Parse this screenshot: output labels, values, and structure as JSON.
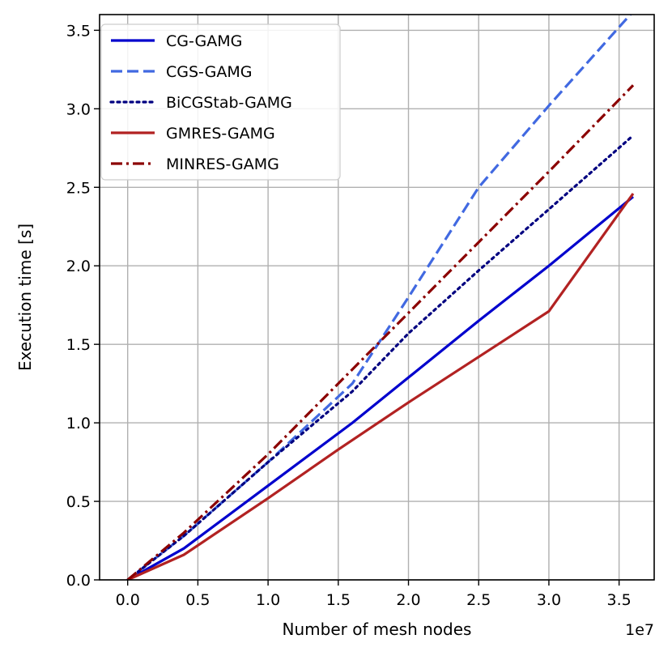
{
  "chart_data": {
    "type": "line",
    "title": "",
    "xlabel": "Number of mesh nodes",
    "ylabel": "Execution time [s]",
    "x_offset_label": "1e7",
    "xlim": [
      -0.2,
      3.75
    ],
    "ylim": [
      0.0,
      3.6
    ],
    "xticks": [
      0.0,
      0.5,
      1.0,
      1.5,
      2.0,
      2.5,
      3.0,
      3.5
    ],
    "xtick_labels": [
      "0.0",
      "0.5",
      "1.0",
      "1.5",
      "2.0",
      "2.5",
      "3.0",
      "3.5"
    ],
    "yticks": [
      0.0,
      0.5,
      1.0,
      1.5,
      2.0,
      2.5,
      3.0,
      3.5
    ],
    "ytick_labels": [
      "0.0",
      "0.5",
      "1.0",
      "1.5",
      "2.0",
      "2.5",
      "3.0",
      "3.5"
    ],
    "grid": true,
    "legend_position": "top-left",
    "series": [
      {
        "name": "CG-GAMG",
        "color": "#0000cd",
        "dash": "solid",
        "x": [
          0.0,
          0.4,
          1.0,
          1.6,
          2.5,
          3.0,
          3.6
        ],
        "y": [
          0.0,
          0.2,
          0.6,
          1.0,
          1.65,
          2.0,
          2.44
        ]
      },
      {
        "name": "CGS-GAMG",
        "color": "#4169e1",
        "dash": "dashed",
        "x": [
          0.0,
          0.4,
          1.0,
          1.6,
          2.0,
          2.5,
          3.0,
          3.6
        ],
        "y": [
          0.0,
          0.28,
          0.75,
          1.25,
          1.8,
          2.5,
          3.02,
          3.62
        ]
      },
      {
        "name": "BiCGStab-GAMG",
        "color": "#000080",
        "dash": "dotted",
        "x": [
          0.0,
          0.4,
          1.0,
          1.6,
          2.0,
          2.5,
          3.0,
          3.6
        ],
        "y": [
          0.0,
          0.28,
          0.75,
          1.2,
          1.57,
          1.97,
          2.36,
          2.83
        ]
      },
      {
        "name": "GMRES-GAMG",
        "color": "#b22222",
        "dash": "solid",
        "x": [
          0.0,
          0.4,
          1.0,
          1.5,
          2.0,
          2.5,
          3.0,
          3.6
        ],
        "y": [
          0.0,
          0.16,
          0.52,
          0.83,
          1.13,
          1.42,
          1.71,
          2.46
        ]
      },
      {
        "name": "MINRES-GAMG",
        "color": "#8b0000",
        "dash": "dashdot",
        "x": [
          0.0,
          0.4,
          1.0,
          1.5,
          2.0,
          2.5,
          3.0,
          3.6
        ],
        "y": [
          0.0,
          0.3,
          0.8,
          1.25,
          1.7,
          2.15,
          2.6,
          3.15
        ]
      }
    ]
  }
}
